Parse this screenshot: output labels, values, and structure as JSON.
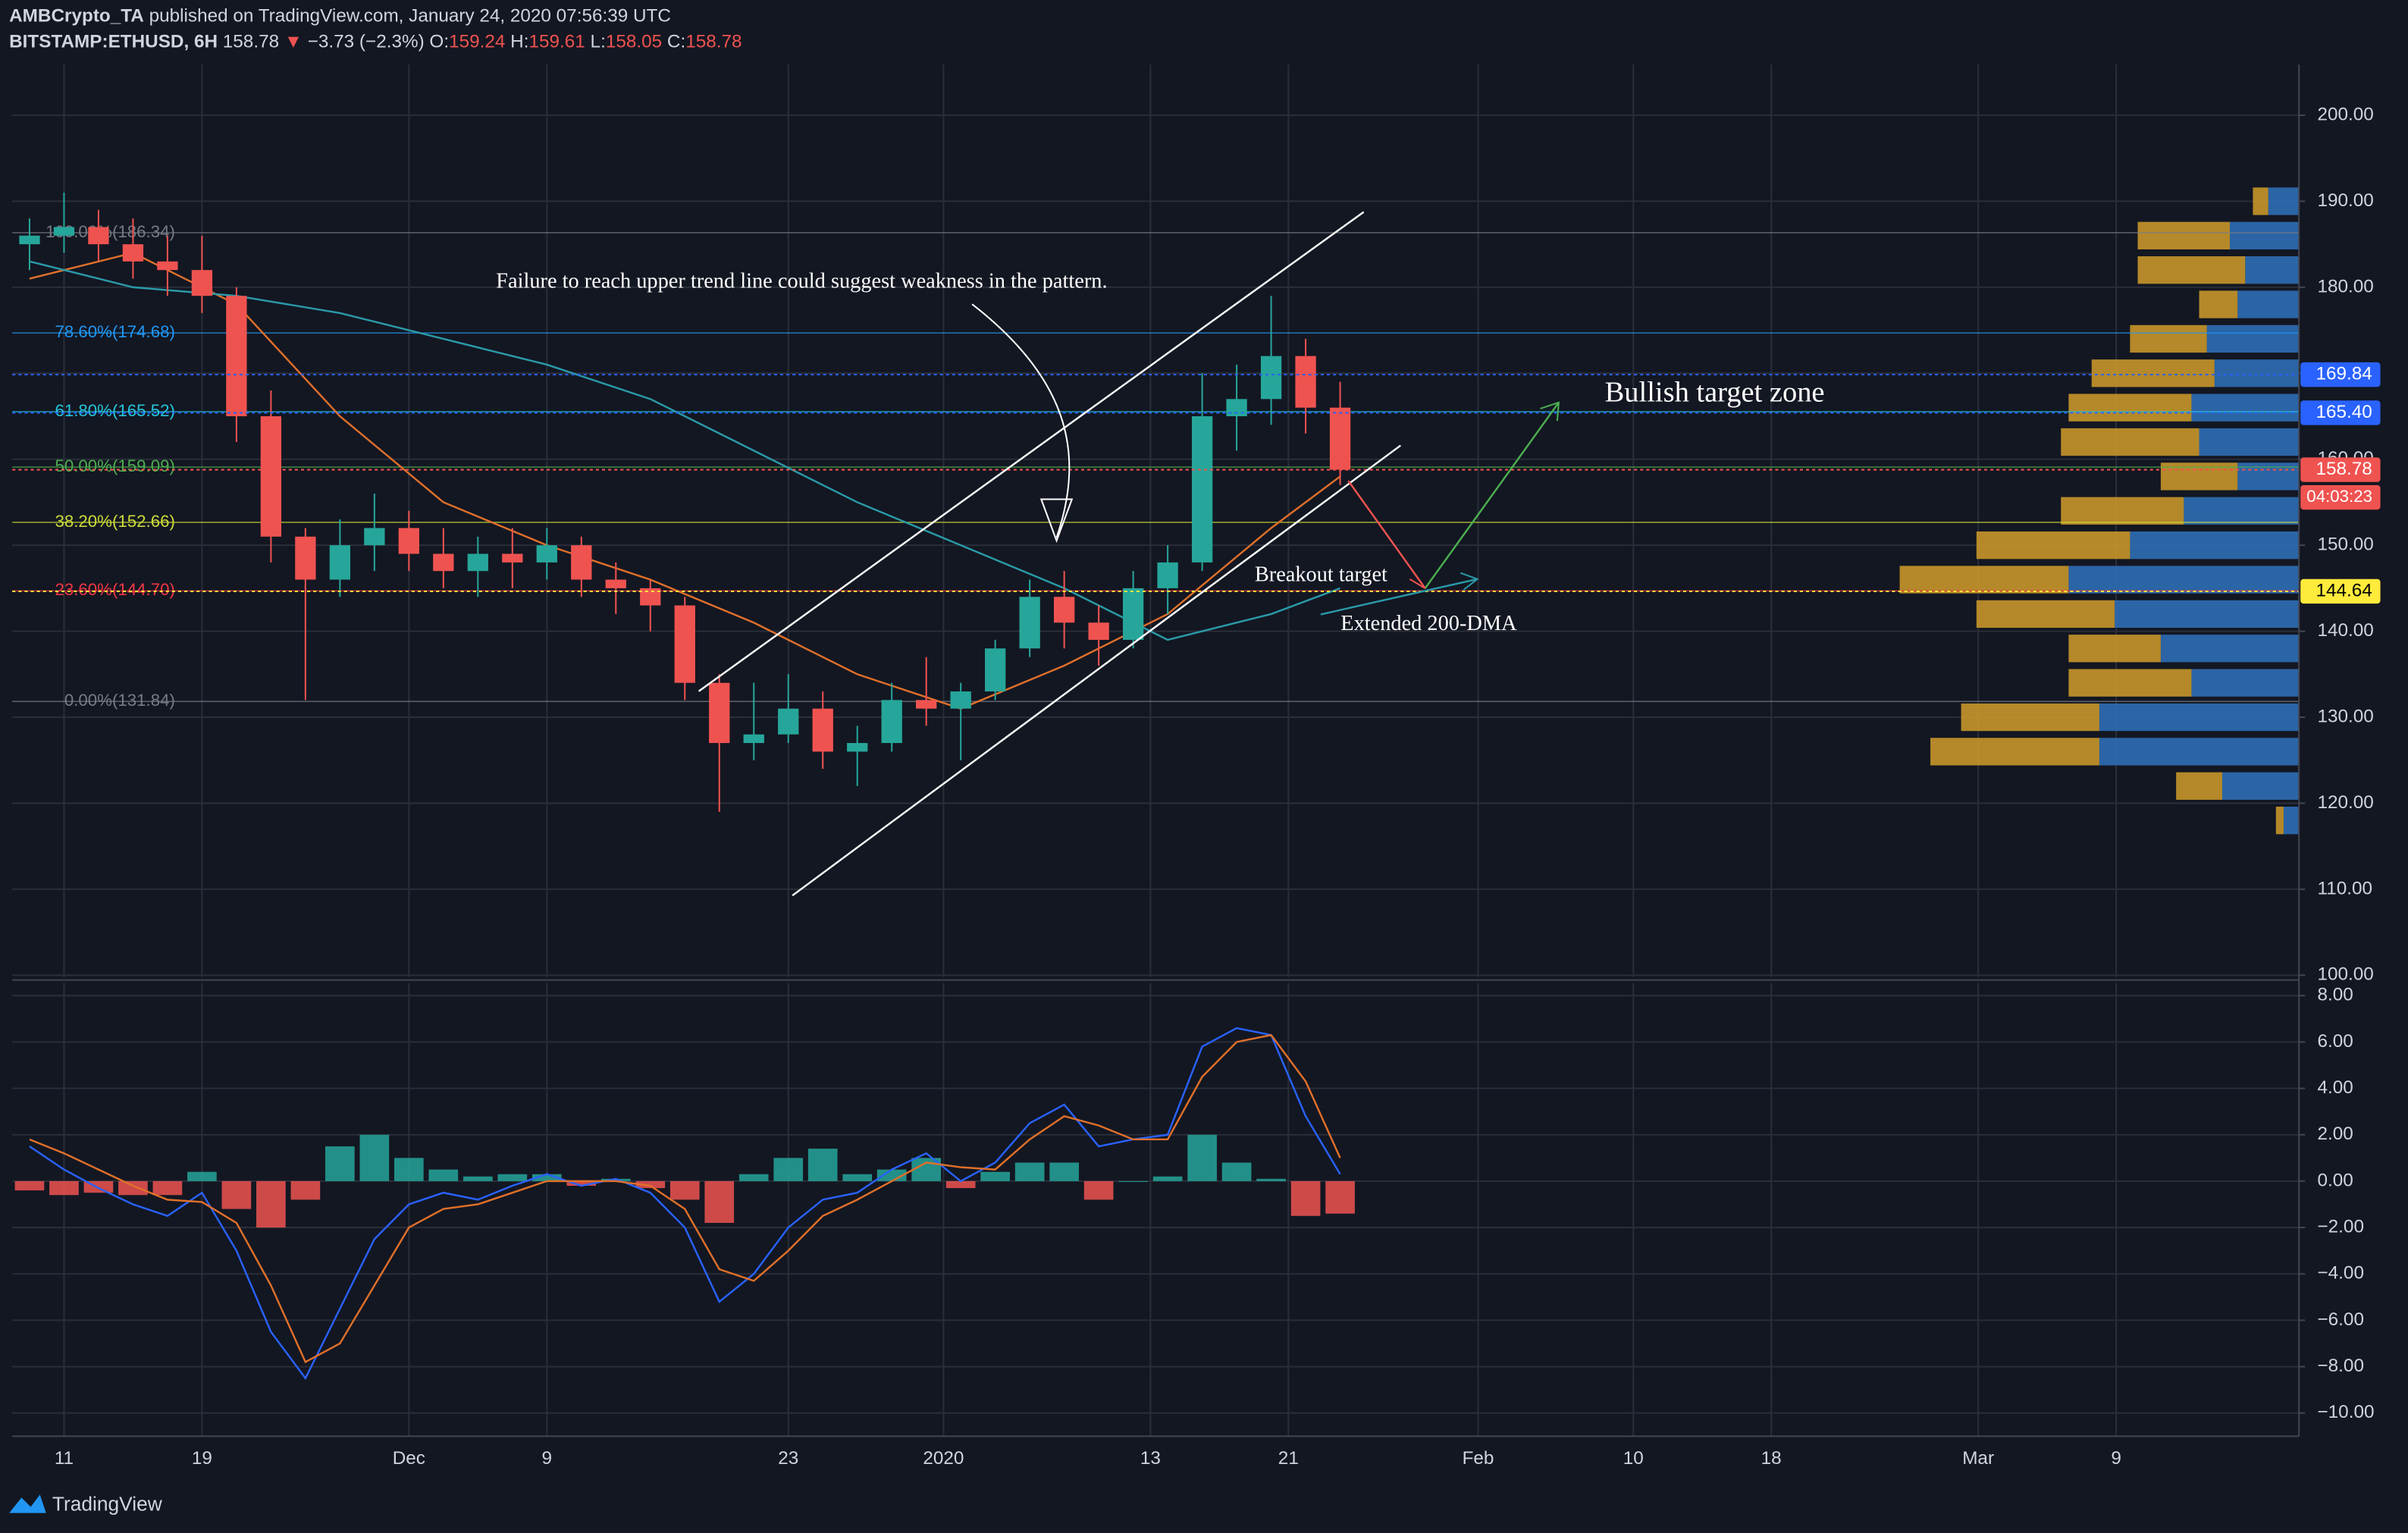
{
  "header": {
    "author": "AMBCrypto_TA",
    "published": "published on TradingView.com, January 24, 2020 07:56:39 UTC",
    "symbol": "BITSTAMP:ETHUSD, 6H",
    "last": "158.78",
    "arrow": "▼",
    "change": "−3.73 (−2.3%)",
    "o_label": "O:",
    "o": "159.24",
    "h_label": "H:",
    "h": "159.61",
    "l_label": "L:",
    "l": "158.05",
    "c_label": "C:",
    "c": "158.78"
  },
  "footer": {
    "brand": "TradingView"
  },
  "chart_data": [
    {
      "type": "candlestick",
      "x": [
        8,
        10,
        12,
        14,
        16,
        18,
        20,
        22,
        24,
        26,
        28,
        30,
        32,
        34,
        36,
        38,
        40,
        42,
        44,
        46,
        48,
        50,
        52,
        54,
        56,
        58,
        60,
        62,
        64,
        66,
        68,
        70,
        72,
        74,
        76,
        78,
        80,
        82,
        84
      ],
      "open": [
        185,
        186,
        187,
        185,
        183,
        182,
        179,
        165,
        151,
        146,
        150,
        152,
        149,
        147,
        149,
        148,
        150,
        146,
        145,
        143,
        134,
        127,
        128,
        131,
        126,
        127,
        132,
        131,
        133,
        138,
        144,
        141,
        139,
        145,
        148,
        165,
        167,
        172,
        166
      ],
      "high": [
        188,
        191,
        189,
        188,
        186,
        186,
        180,
        168,
        152,
        153,
        156,
        154,
        152,
        151,
        152,
        152,
        151,
        148,
        146,
        144,
        135,
        134,
        135,
        133,
        129,
        134,
        137,
        134,
        139,
        146,
        147,
        143,
        147,
        150,
        170,
        171,
        179,
        174,
        169
      ],
      "low": [
        182,
        184,
        183,
        181,
        179,
        177,
        162,
        148,
        132,
        144,
        147,
        147,
        145,
        144,
        145,
        146,
        144,
        142,
        140,
        132,
        119,
        125,
        127,
        124,
        122,
        126,
        129,
        125,
        132,
        137,
        138,
        136,
        138,
        142,
        147,
        161,
        164,
        163,
        157
      ],
      "close": [
        186,
        187,
        185,
        183,
        182,
        179,
        165,
        151,
        146,
        150,
        152,
        149,
        147,
        149,
        148,
        150,
        146,
        145,
        143,
        134,
        127,
        128,
        131,
        126,
        127,
        132,
        131,
        133,
        138,
        144,
        141,
        139,
        145,
        148,
        165,
        167,
        172,
        166,
        158.78
      ],
      "up_color": "#26a69a",
      "down_color": "#ef5350",
      "series": [
        {
          "color": "#e0702a",
          "x": [
            8,
            14,
            20,
            26,
            32,
            38,
            44,
            50,
            56,
            62,
            68,
            74,
            80,
            84
          ],
          "values": [
            181,
            184,
            178,
            165,
            155,
            150,
            146,
            141,
            135,
            131,
            136,
            142,
            152,
            158
          ]
        },
        {
          "color": "#2a9aa8",
          "x": [
            8,
            14,
            20,
            26,
            32,
            38,
            44,
            50,
            56,
            62,
            68,
            74,
            80,
            84
          ],
          "values": [
            183,
            180,
            179,
            177,
            174,
            171,
            167,
            161,
            155,
            150,
            145,
            139,
            142,
            145
          ]
        }
      ],
      "fib_levels": [
        {
          "value": 186.34,
          "label": "100.00%(186.34)",
          "color": "#787b86"
        },
        {
          "value": 174.68,
          "label": "78.60%(174.68)",
          "color": "#2196f3"
        },
        {
          "value": 165.52,
          "label": "61.80%(165.52)",
          "color": "#26c6da"
        },
        {
          "value": 159.09,
          "label": "50.00%(159.09)",
          "color": "#4caf50"
        },
        {
          "value": 152.66,
          "label": "38.20%(152.66)",
          "color": "#cddc39"
        },
        {
          "value": 144.7,
          "label": "23.60%(144.70)",
          "color": "#f23645"
        },
        {
          "value": 131.84,
          "label": "0.00%(131.84)",
          "color": "#787b86"
        }
      ],
      "price_labels": [
        {
          "value": 169.84,
          "color": "#2962ff"
        },
        {
          "value": 165.4,
          "label": "165.40",
          "color": "#2962ff"
        },
        {
          "value": 158.78,
          "color": "#ef5350"
        },
        {
          "value": 144.64,
          "color": "#ffeb3b"
        }
      ],
      "countdown": "04:03:23",
      "volume_profile": {
        "prices": [
          190,
          186,
          182,
          178,
          174,
          170,
          166,
          162,
          158,
          154,
          150,
          146,
          142,
          138,
          134,
          130,
          126,
          122,
          118
        ],
        "up": [
          20,
          45,
          35,
          40,
          60,
          55,
          70,
          65,
          40,
          75,
          110,
          150,
          120,
          90,
          70,
          130,
          130,
          50,
          10
        ],
        "down": [
          10,
          60,
          70,
          25,
          50,
          80,
          80,
          90,
          50,
          80,
          100,
          110,
          90,
          60,
          80,
          90,
          110,
          30,
          5
        ],
        "up_color": "#2f6eb5",
        "down_color": "#c8962a"
      },
      "annotations": [
        "Failure to reach upper trend line could suggest weakness in the pattern.",
        "Bullish target zone",
        "Breakout target",
        "Extended 200-DMA"
      ],
      "xlim": [
        7,
        139.6
      ],
      "ylim": [
        99.8,
        205.9
      ],
      "yticks": [
        {
          "value": 100,
          "label": "100.00"
        },
        {
          "value": 110,
          "label": "110.00"
        },
        {
          "value": 120,
          "label": "120.00"
        },
        {
          "value": 130,
          "label": "130.00"
        },
        {
          "value": 140,
          "label": "140.00"
        },
        {
          "value": 150,
          "label": "150.00"
        },
        {
          "value": 160,
          "label": "160.00"
        },
        {
          "value": 170,
          "label": "170.00"
        },
        {
          "value": 180,
          "label": "180.00"
        },
        {
          "value": 190,
          "label": "190.00"
        },
        {
          "value": 200,
          "label": "200.00"
        }
      ],
      "grid": true
    },
    {
      "type": "macd",
      "x": [
        8,
        10,
        12,
        14,
        16,
        18,
        20,
        22,
        24,
        26,
        28,
        30,
        32,
        34,
        36,
        38,
        40,
        42,
        44,
        46,
        48,
        50,
        52,
        54,
        56,
        58,
        60,
        62,
        64,
        66,
        68,
        70,
        72,
        74,
        76,
        78,
        80,
        82,
        84
      ],
      "histogram": [
        -0.4,
        -0.6,
        -0.5,
        -0.6,
        -0.6,
        0.4,
        -1.2,
        -2.0,
        -0.8,
        1.5,
        2.0,
        1.0,
        0.5,
        0.2,
        0.3,
        0.3,
        -0.2,
        0.1,
        -0.3,
        -0.8,
        -1.8,
        0.3,
        1.0,
        1.4,
        0.3,
        0.5,
        1.0,
        -0.3,
        0.4,
        0.8,
        0.8,
        -0.8,
        0.0,
        0.2,
        2.0,
        0.8,
        0.1,
        -1.5,
        -1.4
      ],
      "pos_color": "#26a69a",
      "neg_color": "#ef5350",
      "series": [
        {
          "color": "#2962ff",
          "values": [
            1.5,
            0.5,
            -0.3,
            -1.0,
            -1.5,
            -0.5,
            -3.0,
            -6.5,
            -8.5,
            -5.5,
            -2.5,
            -1.0,
            -0.5,
            -0.8,
            -0.2,
            0.3,
            -0.2,
            0.1,
            -0.5,
            -2.0,
            -5.2,
            -4.0,
            -2.0,
            -0.8,
            -0.5,
            0.5,
            1.2,
            0.0,
            0.8,
            2.5,
            3.3,
            1.5,
            1.8,
            2.0,
            5.8,
            6.6,
            6.3,
            2.8,
            0.3
          ]
        },
        {
          "color": "#e0702a",
          "values": [
            1.8,
            1.2,
            0.5,
            -0.2,
            -0.8,
            -0.9,
            -1.8,
            -4.5,
            -7.8,
            -7.0,
            -4.5,
            -2.0,
            -1.2,
            -1.0,
            -0.5,
            0.0,
            0.0,
            0.0,
            -0.2,
            -1.2,
            -3.8,
            -4.3,
            -3.0,
            -1.5,
            -0.8,
            0.0,
            0.8,
            0.6,
            0.5,
            1.8,
            2.8,
            2.4,
            1.8,
            1.8,
            4.5,
            6.0,
            6.3,
            4.3,
            1.0
          ]
        }
      ],
      "xlim": [
        7,
        139.6
      ],
      "ylim": [
        -11,
        8.54
      ],
      "yticks": [
        {
          "value": -10,
          "label": "−10.00"
        },
        {
          "value": -8,
          "label": "−8.00"
        },
        {
          "value": -6,
          "label": "−6.00"
        },
        {
          "value": -4,
          "label": "−4.00"
        },
        {
          "value": -2,
          "label": "−2.00"
        },
        {
          "value": 0,
          "label": "0.00"
        },
        {
          "value": 2,
          "label": "2.00"
        },
        {
          "value": 4,
          "label": "4.00"
        },
        {
          "value": 6,
          "label": "6.00"
        },
        {
          "value": 8,
          "label": "8.00"
        }
      ],
      "xticks": [
        {
          "value": 10,
          "label": "11"
        },
        {
          "value": 18,
          "label": "19"
        },
        {
          "value": 30,
          "label": "Dec"
        },
        {
          "value": 38,
          "label": "9"
        },
        {
          "value": 52,
          "label": "23"
        },
        {
          "value": 61,
          "label": "2020"
        },
        {
          "value": 73,
          "label": "13"
        },
        {
          "value": 81,
          "label": "21"
        },
        {
          "value": 92,
          "label": "Feb"
        },
        {
          "value": 101,
          "label": "10"
        },
        {
          "value": 109,
          "label": "18"
        },
        {
          "value": 121,
          "label": "Mar"
        },
        {
          "value": 129,
          "label": "9"
        }
      ],
      "grid": true
    }
  ]
}
